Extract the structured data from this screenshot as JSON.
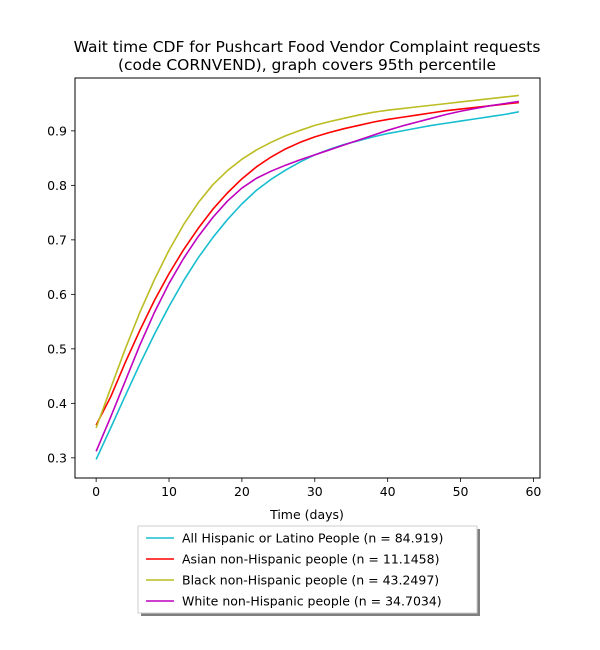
{
  "chart_data": {
    "type": "line",
    "title": "Wait time CDF for Pushcart Food Vendor Complaint  requests",
    "subtitle": "(code CORNVEND), graph covers 95th percentile",
    "xlabel": "Time (days)",
    "ylabel": "",
    "xlim": [
      -2.9,
      60.9
    ],
    "ylim": [
      0.263,
      0.997
    ],
    "xticks": [
      0,
      10,
      20,
      30,
      40,
      50,
      60
    ],
    "yticks": [
      0.3,
      0.4,
      0.5,
      0.6,
      0.7,
      0.8,
      0.9
    ],
    "xtick_labels": [
      "0",
      "10",
      "20",
      "30",
      "40",
      "50",
      "60"
    ],
    "ytick_labels": [
      "0.3",
      "0.4",
      "0.5",
      "0.6",
      "0.7",
      "0.8",
      "0.9"
    ],
    "grid": false,
    "legend_position": "below plot, centered",
    "x": [
      0,
      2,
      4,
      6,
      8,
      10,
      12,
      14,
      16,
      18,
      20,
      22,
      24,
      26,
      28,
      30,
      32,
      34,
      36,
      38,
      40,
      42,
      44,
      46,
      48,
      50,
      52,
      54,
      56,
      58
    ],
    "series": [
      {
        "name": "All Hispanic or Latino People (n = 84.919)",
        "color": "#17becf",
        "values": [
          0.297,
          0.355,
          0.414,
          0.472,
          0.527,
          0.578,
          0.625,
          0.667,
          0.704,
          0.737,
          0.766,
          0.791,
          0.811,
          0.828,
          0.843,
          0.856,
          0.866,
          0.875,
          0.882,
          0.889,
          0.895,
          0.9,
          0.905,
          0.91,
          0.914,
          0.918,
          0.922,
          0.926,
          0.93,
          0.935
        ]
      },
      {
        "name": "Asian non-Hispanic people (n = 11.1458)",
        "color": "#ff0000",
        "values": [
          0.36,
          0.412,
          0.475,
          0.534,
          0.589,
          0.638,
          0.682,
          0.721,
          0.756,
          0.786,
          0.812,
          0.834,
          0.852,
          0.867,
          0.879,
          0.889,
          0.897,
          0.904,
          0.91,
          0.916,
          0.921,
          0.925,
          0.929,
          0.933,
          0.937,
          0.94,
          0.943,
          0.946,
          0.949,
          0.952
        ]
      },
      {
        "name": "Black non-Hispanic people (n = 43.2497)",
        "color": "#bcbd22",
        "values": [
          0.355,
          0.428,
          0.5,
          0.567,
          0.627,
          0.681,
          0.728,
          0.768,
          0.801,
          0.827,
          0.848,
          0.865,
          0.879,
          0.891,
          0.901,
          0.91,
          0.917,
          0.923,
          0.929,
          0.934,
          0.938,
          0.941,
          0.944,
          0.947,
          0.95,
          0.953,
          0.956,
          0.959,
          0.962,
          0.965
        ]
      },
      {
        "name": "White non-Hispanic people (n = 34.7034)",
        "color": "#bf00bf",
        "values": [
          0.312,
          0.375,
          0.441,
          0.507,
          0.567,
          0.62,
          0.666,
          0.706,
          0.741,
          0.771,
          0.795,
          0.813,
          0.826,
          0.837,
          0.847,
          0.856,
          0.865,
          0.874,
          0.883,
          0.892,
          0.901,
          0.909,
          0.916,
          0.923,
          0.93,
          0.936,
          0.941,
          0.946,
          0.95,
          0.954
        ]
      }
    ]
  }
}
